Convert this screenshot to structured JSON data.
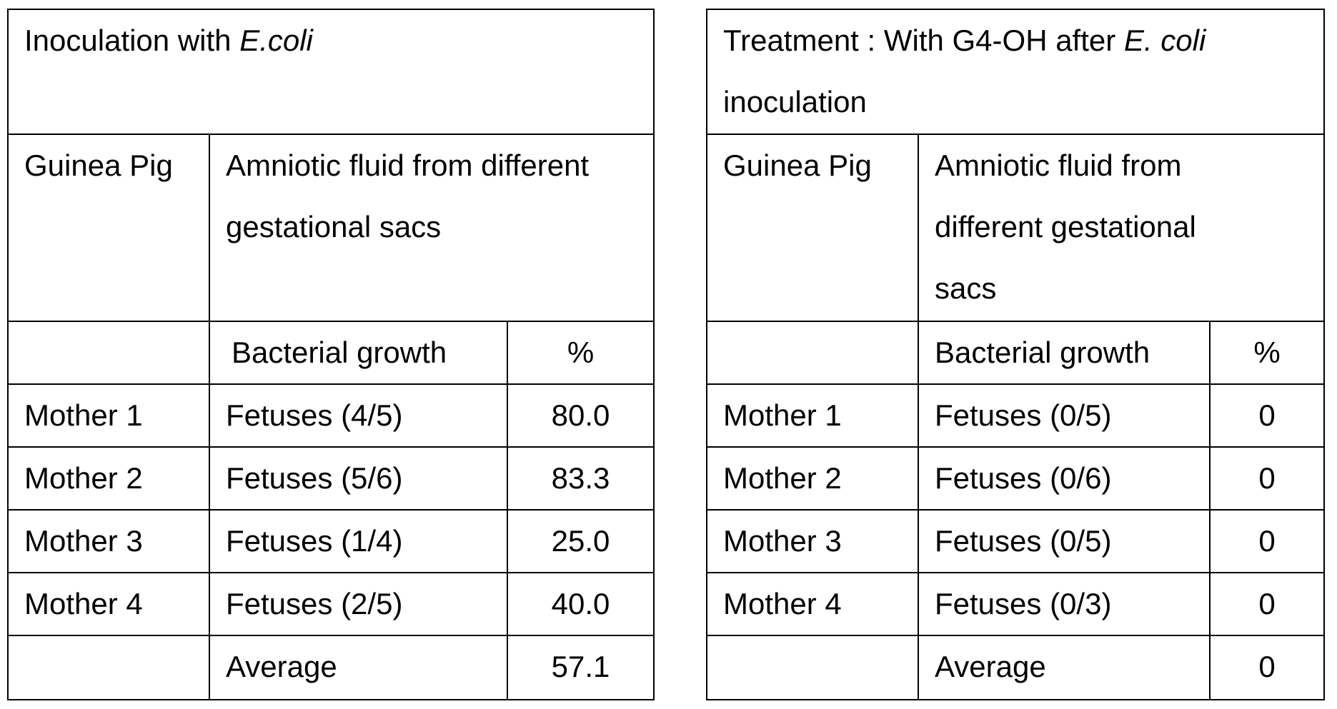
{
  "left_table": {
    "title_text": "Inoculation with ",
    "title_italic": "E.coli",
    "col_guinea_pig": "Guinea Pig",
    "col_amniotic": "Amniotic fluid from different gestational sacs",
    "col_bacterial_growth": "Bacterial growth",
    "col_percent": "%",
    "rows": [
      {
        "label": "Mother 1",
        "growth": "Fetuses (4/5)",
        "percent": "80.0"
      },
      {
        "label": "Mother 2",
        "growth": "Fetuses (5/6)",
        "percent": "83.3"
      },
      {
        "label": "Mother 3",
        "growth": "Fetuses (1/4)",
        "percent": "25.0"
      },
      {
        "label": "Mother 4",
        "growth": "Fetuses (2/5)",
        "percent": "40.0"
      }
    ],
    "average_label": "Average",
    "average_value": "57.1"
  },
  "right_table": {
    "title_text": "Treatment : With G4-OH after ",
    "title_italic": "E. coli",
    "title_text_end": " inoculation",
    "col_guinea_pig": "Guinea Pig",
    "col_amniotic": "Amniotic fluid from different gestational sacs",
    "col_bacterial_growth": "Bacterial growth",
    "col_percent": "%",
    "rows": [
      {
        "label": "Mother 1",
        "growth": "Fetuses (0/5)",
        "percent": "0"
      },
      {
        "label": "Mother 2",
        "growth": "Fetuses (0/6)",
        "percent": "0"
      },
      {
        "label": "Mother 3",
        "growth": "Fetuses (0/5)",
        "percent": "0"
      },
      {
        "label": "Mother 4",
        "growth": "Fetuses (0/3)",
        "percent": "0"
      }
    ],
    "average_label": "Average",
    "average_value": "0"
  }
}
